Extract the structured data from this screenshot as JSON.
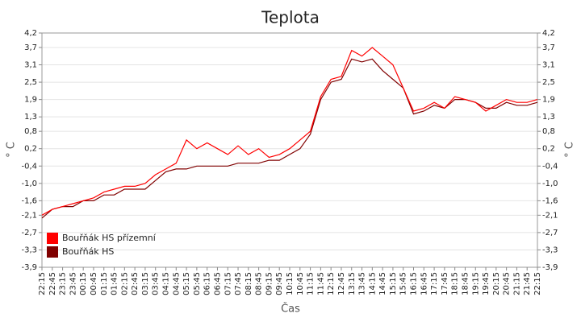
{
  "chart_data": {
    "type": "line",
    "title": "Teplota",
    "xlabel": "Čas",
    "ylabel": "° C",
    "categories": [
      "22:15",
      "22:45",
      "23:15",
      "23:45",
      "00:15",
      "00:45",
      "01:15",
      "01:45",
      "02:15",
      "02:45",
      "03:15",
      "03:45",
      "04:15",
      "04:45",
      "05:15",
      "05:45",
      "06:15",
      "06:45",
      "07:15",
      "07:45",
      "08:15",
      "08:45",
      "09:15",
      "09:45",
      "10:15",
      "10:45",
      "11:15",
      "11:45",
      "12:15",
      "12:45",
      "13:15",
      "13:45",
      "14:15",
      "14:45",
      "15:15",
      "15:45",
      "16:15",
      "16:45",
      "17:15",
      "17:45",
      "18:15",
      "18:45",
      "19:15",
      "19:45",
      "20:15",
      "20:45",
      "21:15",
      "21:45",
      "22:15"
    ],
    "series": [
      {
        "name": "Bouřňák HS přízemní",
        "color": "#ff0000",
        "values": [
          -2.1,
          -1.9,
          -1.8,
          -1.7,
          -1.6,
          -1.5,
          -1.3,
          -1.2,
          -1.1,
          -1.1,
          -1.0,
          -0.7,
          -0.5,
          -0.3,
          0.5,
          0.2,
          0.4,
          0.2,
          0.0,
          0.3,
          0.0,
          0.2,
          -0.1,
          0.0,
          0.2,
          0.5,
          0.8,
          2.0,
          2.6,
          2.7,
          3.6,
          3.4,
          3.7,
          3.4,
          3.1,
          2.3,
          1.5,
          1.6,
          1.8,
          1.6,
          2.0,
          1.9,
          1.8,
          1.5,
          1.7,
          1.9,
          1.8,
          1.8,
          1.9
        ]
      },
      {
        "name": "Bouřňák HS",
        "color": "#800000",
        "values": [
          -2.2,
          -1.9,
          -1.8,
          -1.8,
          -1.6,
          -1.6,
          -1.4,
          -1.4,
          -1.2,
          -1.2,
          -1.2,
          -0.9,
          -0.6,
          -0.5,
          -0.5,
          -0.4,
          -0.4,
          -0.4,
          -0.4,
          -0.3,
          -0.3,
          -0.3,
          -0.2,
          -0.2,
          0.0,
          0.2,
          0.7,
          1.9,
          2.5,
          2.6,
          3.3,
          3.2,
          3.3,
          2.9,
          2.6,
          2.3,
          1.4,
          1.5,
          1.7,
          1.6,
          1.9,
          1.9,
          1.8,
          1.6,
          1.6,
          1.8,
          1.7,
          1.7,
          1.8
        ]
      }
    ],
    "ylim": [
      -3.9,
      4.2
    ],
    "yticks": [
      {
        "value": -3.9,
        "label": "-3,9"
      },
      {
        "value": -3.3,
        "label": "-3,3"
      },
      {
        "value": -2.7,
        "label": "-2,7"
      },
      {
        "value": -2.1,
        "label": "-2,1"
      },
      {
        "value": -1.6,
        "label": "-1,6"
      },
      {
        "value": -1.0,
        "label": "-1,0"
      },
      {
        "value": -0.4,
        "label": "-0,4"
      },
      {
        "value": 0.2,
        "label": "0,2"
      },
      {
        "value": 0.8,
        "label": "0,8"
      },
      {
        "value": 1.3,
        "label": "1,3"
      },
      {
        "value": 1.9,
        "label": "1,9"
      },
      {
        "value": 2.5,
        "label": "2,5"
      },
      {
        "value": 3.1,
        "label": "3,1"
      },
      {
        "value": 3.7,
        "label": "3,7"
      },
      {
        "value": 4.2,
        "label": "4,2"
      }
    ],
    "grid": true,
    "legend": "lower-left"
  }
}
